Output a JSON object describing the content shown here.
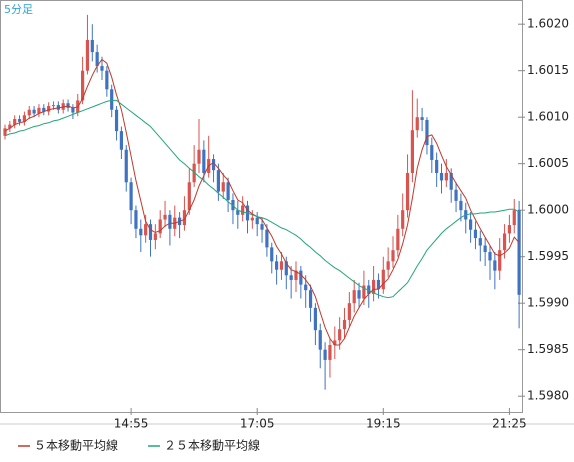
{
  "chart_data": {
    "type": "candlestick",
    "title": "5分足",
    "categories": [
      null,
      null,
      null,
      null,
      null,
      null,
      null,
      null,
      null,
      null,
      null,
      null,
      null,
      null,
      null,
      null,
      null,
      null,
      null,
      null,
      null,
      null,
      null,
      null,
      null,
      null,
      "14:55",
      null,
      null,
      null,
      null,
      null,
      null,
      null,
      null,
      null,
      null,
      null,
      null,
      null,
      null,
      null,
      null,
      null,
      null,
      null,
      null,
      null,
      null,
      null,
      null,
      null,
      "17:05",
      null,
      null,
      null,
      null,
      null,
      null,
      null,
      null,
      null,
      null,
      null,
      null,
      null,
      null,
      null,
      null,
      null,
      null,
      null,
      null,
      null,
      null,
      null,
      null,
      null,
      "19:15",
      null,
      null,
      null,
      null,
      null,
      null,
      null,
      null,
      null,
      null,
      null,
      null,
      null,
      null,
      null,
      null,
      null,
      null,
      null,
      null,
      null,
      null,
      null,
      null,
      null,
      "21:25",
      null,
      null
    ],
    "open": [
      1.6008,
      1.60088,
      1.60092,
      1.60098,
      1.60095,
      1.60102,
      1.60108,
      1.60104,
      1.6011,
      1.60106,
      1.60112,
      1.60113,
      1.60108,
      1.60115,
      1.6011,
      1.60105,
      1.60118,
      1.6015,
      1.60183,
      1.6017,
      1.60155,
      1.6015,
      1.6013,
      1.60108,
      1.60085,
      1.60065,
      1.6003,
      1.6,
      1.5998,
      1.59973,
      1.59985,
      1.59968,
      1.59975,
      1.5999,
      1.59995,
      1.5998,
      1.59992,
      1.59984,
      1.6,
      1.6003,
      1.6005,
      1.60065,
      1.6004,
      1.60055,
      1.60043,
      1.6002,
      1.6003,
      1.60011,
      1.6,
      1.59995,
      1.60005,
      1.59989,
      1.59992,
      1.59985,
      1.59979,
      1.5996,
      1.59945,
      1.59936,
      1.59945,
      1.5993,
      1.59925,
      1.59935,
      1.5992,
      1.59914,
      1.59895,
      1.59871,
      1.5985,
      1.59839,
      1.59855,
      1.5986,
      1.59872,
      1.59882,
      1.599,
      1.59914,
      1.59905,
      1.59919,
      1.5991,
      1.59925,
      1.59915,
      1.59936,
      1.59945,
      1.59957,
      1.5998,
      1.6,
      1.6004,
      1.60086,
      1.601,
      1.60097,
      1.6007,
      1.60054,
      1.6004,
      1.60032,
      1.6004,
      1.60022,
      1.6001,
      1.6,
      1.5999,
      1.59979,
      1.5997,
      1.59962,
      1.59955,
      1.59946,
      1.59935,
      1.59957,
      1.59975,
      1.59984,
      1.6
    ],
    "high": [
      1.60092,
      1.60096,
      1.60102,
      1.60102,
      1.60106,
      1.60112,
      1.60112,
      1.60114,
      1.60114,
      1.60116,
      1.60117,
      1.60117,
      1.60119,
      1.60119,
      1.60114,
      1.60125,
      1.60165,
      1.6021,
      1.602,
      1.60178,
      1.60165,
      1.60155,
      1.60135,
      1.60112,
      1.6009,
      1.6007,
      1.60035,
      1.60005,
      1.5999,
      1.59995,
      1.5999,
      1.59985,
      1.6,
      1.6001,
      1.6,
      1.60005,
      1.59998,
      1.60015,
      1.60045,
      1.6007,
      1.60098,
      1.60075,
      1.6008,
      1.6006,
      1.6005,
      1.6004,
      1.60035,
      1.60018,
      1.6001,
      1.60015,
      1.6001,
      1.6,
      1.59998,
      1.59992,
      1.59985,
      1.59965,
      1.59952,
      1.59955,
      1.5995,
      1.5994,
      1.59945,
      1.5994,
      1.5993,
      1.5992,
      1.599,
      1.59878,
      1.59858,
      1.59862,
      1.59875,
      1.59885,
      1.59895,
      1.59912,
      1.59925,
      1.59922,
      1.59935,
      1.59925,
      1.5994,
      1.59932,
      1.5995,
      1.5996,
      1.59972,
      1.59995,
      1.60018,
      1.6006,
      1.60129,
      1.6012,
      1.6011,
      1.601,
      1.60078,
      1.60062,
      1.6005,
      1.60055,
      1.60045,
      1.6003,
      1.60018,
      1.60008,
      1.59998,
      1.59988,
      1.59978,
      1.5997,
      1.59962,
      1.59955,
      1.5997,
      1.59985,
      1.59995,
      1.60012,
      1.6001
    ],
    "low": [
      1.60076,
      1.60084,
      1.60088,
      1.60091,
      1.60091,
      1.60098,
      1.601,
      1.601,
      1.60102,
      1.60102,
      1.60108,
      1.60104,
      1.60104,
      1.60106,
      1.60098,
      1.60101,
      1.60114,
      1.60146,
      1.6016,
      1.60148,
      1.6014,
      1.60122,
      1.601,
      1.60075,
      1.60055,
      1.6002,
      1.59985,
      1.5997,
      1.59955,
      1.59965,
      1.5995,
      1.59958,
      1.5997,
      1.59982,
      1.59962,
      1.59972,
      1.5997,
      1.59978,
      1.59995,
      1.60025,
      1.6004,
      1.6003,
      1.60035,
      1.6003,
      1.6001,
      1.60012,
      1.59998,
      1.59985,
      1.5998,
      1.59988,
      1.59975,
      1.5998,
      1.59972,
      1.59965,
      1.5995,
      1.59932,
      1.5992,
      1.59925,
      1.59915,
      1.59905,
      1.59912,
      1.59905,
      1.59895,
      1.5988,
      1.59855,
      1.5983,
      1.59807,
      1.5982,
      1.5984,
      1.5985,
      1.59862,
      1.59875,
      1.5989,
      1.59895,
      1.59898,
      1.59895,
      1.59902,
      1.59905,
      1.5991,
      1.59928,
      1.59938,
      1.5995,
      1.59972,
      1.59992,
      1.6003,
      1.60078,
      1.60085,
      1.6006,
      1.6004,
      1.60025,
      1.60018,
      1.60025,
      1.60008,
      1.59998,
      1.59988,
      1.59975,
      1.59965,
      1.59958,
      1.59945,
      1.5994,
      1.59925,
      1.59915,
      1.59925,
      1.59948,
      1.59965,
      1.59975,
      1.59873
    ],
    "close": [
      1.60088,
      1.60092,
      1.60098,
      1.60095,
      1.60102,
      1.60108,
      1.60104,
      1.6011,
      1.60106,
      1.60112,
      1.60113,
      1.60108,
      1.60115,
      1.6011,
      1.60105,
      1.60118,
      1.6015,
      1.60183,
      1.6017,
      1.60155,
      1.6015,
      1.6013,
      1.60108,
      1.60085,
      1.60065,
      1.6003,
      1.6,
      1.5998,
      1.59973,
      1.59985,
      1.59968,
      1.59975,
      1.5999,
      1.59995,
      1.5998,
      1.59992,
      1.59984,
      1.6,
      1.6003,
      1.6005,
      1.60065,
      1.6004,
      1.60055,
      1.60043,
      1.6002,
      1.6003,
      1.60011,
      1.6,
      1.59995,
      1.60005,
      1.59989,
      1.59992,
      1.59985,
      1.59979,
      1.5996,
      1.59945,
      1.59936,
      1.59945,
      1.5993,
      1.59925,
      1.59935,
      1.5992,
      1.59914,
      1.59895,
      1.59871,
      1.5985,
      1.59839,
      1.59855,
      1.5986,
      1.59872,
      1.59882,
      1.599,
      1.59914,
      1.59905,
      1.59919,
      1.5991,
      1.59925,
      1.59915,
      1.59936,
      1.59945,
      1.59957,
      1.5998,
      1.6,
      1.6004,
      1.60086,
      1.601,
      1.60097,
      1.6007,
      1.60054,
      1.6004,
      1.60032,
      1.6004,
      1.60022,
      1.6001,
      1.6,
      1.5999,
      1.59979,
      1.5997,
      1.59962,
      1.59955,
      1.59946,
      1.59935,
      1.59957,
      1.59975,
      1.59984,
      1.6,
      1.59909
    ],
    "up_color": "#d9534f",
    "down_color": "#3f73c2",
    "series": [
      {
        "name": "５本移動平均線",
        "color": "#c0392b",
        "values": [
          1.60085,
          1.60088,
          1.60092,
          1.60094,
          1.60095,
          1.60099,
          1.60101,
          1.60104,
          1.60106,
          1.60108,
          1.60109,
          1.6011,
          1.60111,
          1.60112,
          1.6011,
          1.60111,
          1.6012,
          1.60133,
          1.60145,
          1.60155,
          1.60162,
          1.60158,
          1.60143,
          1.60124,
          1.60108,
          1.60084,
          1.60058,
          1.60032,
          1.6001,
          1.59988,
          1.59979,
          1.59976,
          1.59978,
          1.59983,
          1.59986,
          1.59986,
          1.59988,
          1.5999,
          1.6,
          1.60011,
          1.60026,
          1.60037,
          1.60048,
          1.60051,
          1.60045,
          1.60038,
          1.60032,
          1.60021,
          1.60011,
          1.60008,
          1.6,
          1.59996,
          1.59993,
          1.5999,
          1.59981,
          1.59972,
          1.59961,
          1.59953,
          1.59943,
          1.59936,
          1.59934,
          1.59931,
          1.59925,
          1.59918,
          1.59907,
          1.5989,
          1.59874,
          1.59862,
          1.59855,
          1.59855,
          1.59862,
          1.59874,
          1.59886,
          1.59895,
          1.59904,
          1.5991,
          1.59915,
          1.59915,
          1.59921,
          1.59926,
          1.59936,
          1.59947,
          1.59964,
          1.59984,
          1.60013,
          1.60045,
          1.60065,
          1.60079,
          1.60081,
          1.60072,
          1.60059,
          1.60047,
          1.60038,
          1.60029,
          1.60021,
          1.60013,
          1.6,
          1.5999,
          1.5998,
          1.59971,
          1.59962,
          1.59953,
          1.59951,
          1.59954,
          1.59959,
          1.59971,
          1.59965
        ]
      },
      {
        "name": "２５本移動平均線",
        "color": "#22a57a",
        "values": [
          1.6008,
          1.60082,
          1.60083,
          1.60085,
          1.60086,
          1.60088,
          1.6009,
          1.60091,
          1.60093,
          1.60094,
          1.60096,
          1.60097,
          1.60099,
          1.60101,
          1.60103,
          1.60105,
          1.60107,
          1.60109,
          1.60111,
          1.60113,
          1.60115,
          1.60117,
          1.60118,
          1.60118,
          1.60114,
          1.6011,
          1.60106,
          1.60102,
          1.60098,
          1.60094,
          1.6009,
          1.60084,
          1.60078,
          1.60072,
          1.60066,
          1.6006,
          1.60054,
          1.6005,
          1.60045,
          1.60041,
          1.60036,
          1.60032,
          1.60027,
          1.60023,
          1.60018,
          1.60014,
          1.60009,
          1.60005,
          1.6,
          1.59998,
          1.59997,
          1.59995,
          1.59993,
          1.59992,
          1.5999,
          1.59987,
          1.59984,
          1.59981,
          1.59979,
          1.59976,
          1.59973,
          1.59969,
          1.59964,
          1.5996,
          1.59955,
          1.59951,
          1.59946,
          1.59942,
          1.59938,
          1.59935,
          1.59931,
          1.59927,
          1.59923,
          1.59919,
          1.59916,
          1.59914,
          1.59911,
          1.59909,
          1.59907,
          1.59906,
          1.59907,
          1.59912,
          1.59917,
          1.59922,
          1.59931,
          1.5994,
          1.59948,
          1.59957,
          1.59963,
          1.59969,
          1.59975,
          1.5998,
          1.59984,
          1.59988,
          1.59992,
          1.59995,
          1.59996,
          1.59996,
          1.59997,
          1.59997,
          1.59998,
          1.59998,
          1.59999,
          1.6,
          1.60001,
          1.60001,
          1.59998
        ]
      }
    ],
    "ylim": [
      1.59783,
      1.60226
    ],
    "yticks": [
      {
        "value": 1.598,
        "label": "1.5980"
      },
      1.5985,
      {
        "value": 1.599,
        "label": "1.5990"
      },
      1.5995,
      {
        "value": 1.6,
        "label": "1.6000"
      },
      1.6005,
      {
        "value": 1.601,
        "label": "1.6010"
      },
      1.6015,
      {
        "value": 1.602,
        "label": "1.6020"
      }
    ],
    "grid": false
  }
}
